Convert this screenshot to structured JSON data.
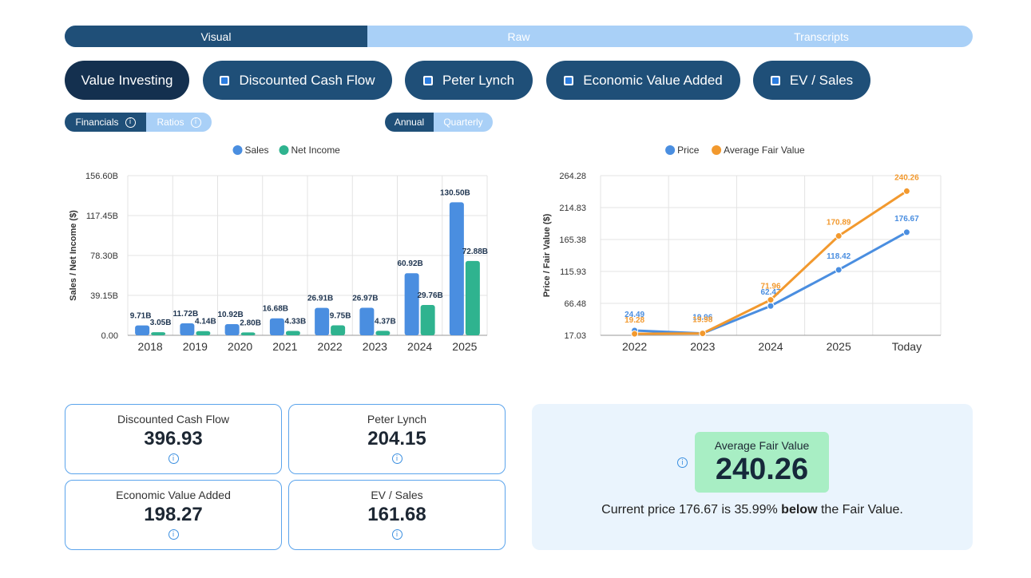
{
  "tabs": [
    {
      "label": "Visual",
      "active": true
    },
    {
      "label": "Raw",
      "active": false
    },
    {
      "label": "Transcripts",
      "active": false
    }
  ],
  "models": {
    "value_investing": "Value Investing",
    "dcf": "Discounted Cash Flow",
    "peter_lynch": "Peter Lynch",
    "eva": "Economic Value Added",
    "ev_sales": "EV / Sales"
  },
  "toggles": {
    "financials": "Financials",
    "ratios": "Ratios",
    "annual": "Annual",
    "quarterly": "Quarterly"
  },
  "colors": {
    "sales": "#4a8ee0",
    "net_income": "#2fb38f",
    "price": "#4a8ee0",
    "fair_value": "#f2992e",
    "brand_dark": "#1f4f78",
    "brand_light": "#a9d0f7"
  },
  "chart_data": [
    {
      "type": "bar",
      "categories": [
        "2018",
        "2019",
        "2020",
        "2021",
        "2022",
        "2023",
        "2024",
        "2025"
      ],
      "series": [
        {
          "name": "Sales",
          "values": [
            9.71,
            11.72,
            10.92,
            16.68,
            26.91,
            26.97,
            60.92,
            130.5
          ],
          "labels": [
            "9.71B",
            "11.72B",
            "10.92B",
            "16.68B",
            "26.91B",
            "26.97B",
            "60.92B",
            "130.50B"
          ]
        },
        {
          "name": "Net Income",
          "values": [
            3.05,
            4.14,
            2.8,
            4.33,
            9.75,
            4.37,
            29.76,
            72.88
          ],
          "labels": [
            "3.05B",
            "4.14B",
            "2.80B",
            "4.33B",
            "9.75B",
            "4.37B",
            "29.76B",
            "72.88B"
          ]
        }
      ],
      "ylabel": "Sales / Net Income ($)",
      "ylim": [
        0,
        156.6
      ],
      "yticks": [
        "156.60B",
        "117.45B",
        "78.30B",
        "39.15B",
        "0.00"
      ],
      "legend": "top-center",
      "grid": true
    },
    {
      "type": "line",
      "categories": [
        "2022",
        "2023",
        "2024",
        "2025",
        "Today"
      ],
      "series": [
        {
          "name": "Price",
          "values": [
            24.49,
            19.96,
            62.47,
            118.42,
            176.67
          ],
          "labels": [
            "24.49",
            "19.96",
            "62.47",
            "118.42",
            "176.67"
          ]
        },
        {
          "name": "Average Fair Value",
          "values": [
            19.28,
            19.98,
            71.96,
            170.89,
            240.26
          ],
          "labels": [
            "19.28",
            "19.98",
            "71.96",
            "170.89",
            "240.26"
          ]
        }
      ],
      "ylabel": "Price / Fair Value ($)",
      "ylim": [
        17.03,
        264.28
      ],
      "yticks": [
        "264.28",
        "214.83",
        "165.38",
        "115.93",
        "66.48",
        "17.03"
      ],
      "legend": "top-center",
      "grid": true
    }
  ],
  "cards": {
    "dcf": {
      "label": "Discounted Cash Flow",
      "value": "396.93"
    },
    "lynch": {
      "label": "Peter Lynch",
      "value": "204.15"
    },
    "eva": {
      "label": "Economic Value Added",
      "value": "198.27"
    },
    "ev_sales": {
      "label": "EV / Sales",
      "value": "161.68"
    }
  },
  "fair_value": {
    "label": "Average Fair Value",
    "value": "240.26",
    "sentence_prefix": "Current price 176.67 is 35.99%",
    "sentence_bold": "below",
    "sentence_suffix": "the Fair Value."
  },
  "info_glyph": "i"
}
